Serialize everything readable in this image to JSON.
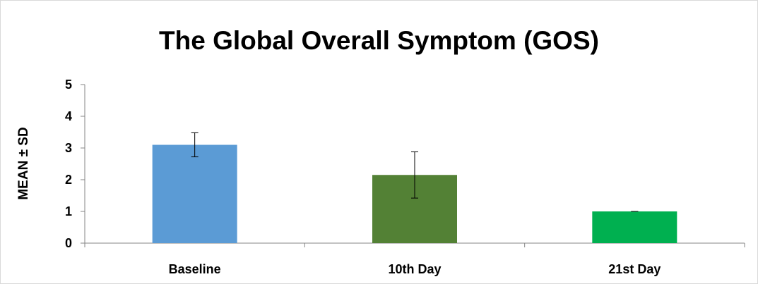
{
  "chart_data": {
    "type": "bar",
    "title": "The Global Overall Symptom (GOS)",
    "xlabel": "",
    "ylabel": "MEAN ± SD",
    "ylim": [
      0,
      5
    ],
    "yticks": [
      0,
      1,
      2,
      3,
      4,
      5
    ],
    "categories": [
      "Baseline",
      "10th Day",
      "21st Day"
    ],
    "values": [
      3.1,
      2.15,
      1.0
    ],
    "error": [
      0.38,
      0.73,
      0.0
    ],
    "colors": [
      "#5b9bd5",
      "#538135",
      "#00b050"
    ],
    "grid": false,
    "legend": "none"
  }
}
